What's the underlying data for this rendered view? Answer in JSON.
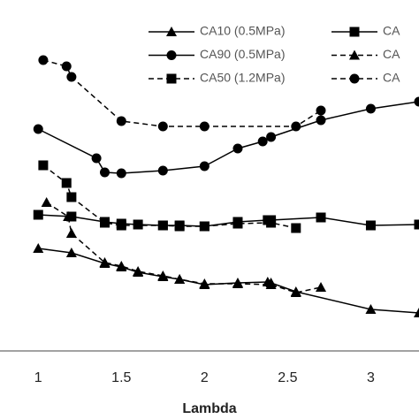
{
  "chart_data": {
    "type": "line",
    "x_label": "Lambda",
    "xlim": [
      0.77,
      3.29
    ],
    "xticks": [
      1,
      1.5,
      2,
      2.5,
      3
    ],
    "ylim": [
      0,
      397
    ],
    "color": "#000000",
    "legend": "top-right",
    "series": [
      {
        "name": "CA10 (0.5MPa)",
        "marker": "triangle",
        "dash": false,
        "x": [
          1,
          1.2,
          1.4,
          1.5,
          1.6,
          1.75,
          1.85,
          2,
          2.2,
          2.38,
          2.4,
          2.55,
          3,
          3.29
        ],
        "values": [
          116,
          111,
          99,
          95,
          89,
          84,
          81,
          75,
          77,
          78,
          77,
          67,
          47,
          43
        ]
      },
      {
        "name": "CA",
        "marker": "square",
        "dash": false,
        "x": [
          1,
          1.2,
          1.4,
          1.5,
          1.6,
          1.75,
          1.85,
          2,
          2.2,
          2.38,
          2.4,
          2.7,
          3,
          3.29
        ],
        "values": [
          154,
          152,
          146,
          144,
          143,
          142,
          142,
          141,
          146,
          148,
          148,
          151,
          142,
          143
        ]
      },
      {
        "name": "CA90 (0.5MPa)",
        "marker": "circle",
        "dash": false,
        "x": [
          1,
          1.35,
          1.4,
          1.5,
          1.75,
          2,
          2.2,
          2.35,
          2.4,
          2.7,
          3,
          3.29
        ],
        "values": [
          251,
          218,
          202,
          201,
          204,
          209,
          229,
          237,
          242,
          261,
          274,
          282
        ]
      },
      {
        "name": "CA",
        "marker": "triangle",
        "dash": true,
        "x": [
          1.05,
          1.18,
          1.2,
          1.4,
          1.5,
          1.6,
          1.75,
          1.85,
          2,
          2.2,
          2.4,
          2.55,
          2.7
        ],
        "values": [
          168,
          152,
          133,
          100,
          96,
          90,
          85,
          81,
          76,
          76,
          75,
          66,
          72
        ]
      },
      {
        "name": "CA50 (1.2MPa)",
        "marker": "square",
        "dash": true,
        "x": [
          1.03,
          1.17,
          1.2,
          1.4,
          1.5,
          1.75,
          1.85,
          2,
          2.2,
          2.4,
          2.55
        ],
        "values": [
          210,
          190,
          174,
          145,
          142,
          142,
          141,
          141,
          144,
          145,
          139
        ]
      },
      {
        "name": "CA",
        "marker": "circle",
        "dash": true,
        "x": [
          1.03,
          1.17,
          1.2,
          1.5,
          1.75,
          2,
          2.55,
          2.7
        ],
        "values": [
          329,
          322,
          310,
          260,
          254,
          254,
          254,
          272
        ]
      }
    ]
  }
}
